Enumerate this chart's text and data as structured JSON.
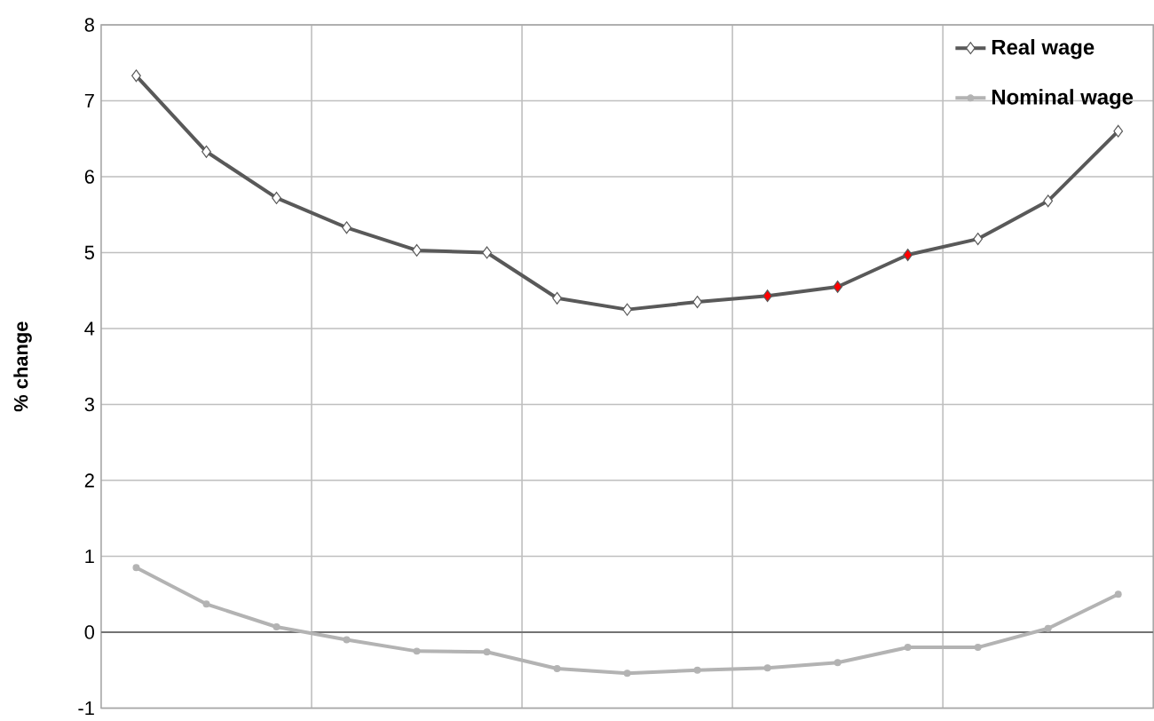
{
  "chart_data": {
    "type": "line",
    "ylabel": "% change",
    "categories": [
      null,
      null,
      null,
      null,
      null,
      null,
      null,
      null,
      null,
      null,
      null,
      null,
      null,
      null,
      null
    ],
    "series": [
      {
        "name": "Real wage",
        "color": "#595959",
        "marker": "diamond",
        "colors": [
          "#ffffff",
          "#ffffff",
          "#ffffff",
          "#ffffff",
          "#ffffff",
          "#ffffff",
          "#ffffff",
          "#ffffff",
          "#ffffff",
          "#ff0000",
          "#ff0000",
          "#ff0000",
          "#ffffff",
          "#ffffff",
          "#ffffff"
        ],
        "values": [
          7.33,
          6.33,
          5.72,
          5.33,
          5.03,
          5.0,
          4.4,
          4.25,
          4.35,
          4.43,
          4.55,
          4.97,
          5.18,
          5.68,
          6.6
        ]
      },
      {
        "name": "Nominal wage",
        "color": "#b3b3b3",
        "marker": "circle",
        "values": [
          0.85,
          0.37,
          0.07,
          -0.1,
          -0.25,
          -0.26,
          -0.48,
          -0.54,
          -0.5,
          -0.47,
          -0.4,
          -0.2,
          -0.2,
          0.05,
          0.5
        ]
      }
    ],
    "ylim": [
      -1,
      8
    ],
    "yticks": [
      -1,
      0,
      1,
      2,
      3,
      4,
      5,
      6,
      7,
      8
    ],
    "grid": true,
    "legend": "top right",
    "tick_labels": "y"
  }
}
